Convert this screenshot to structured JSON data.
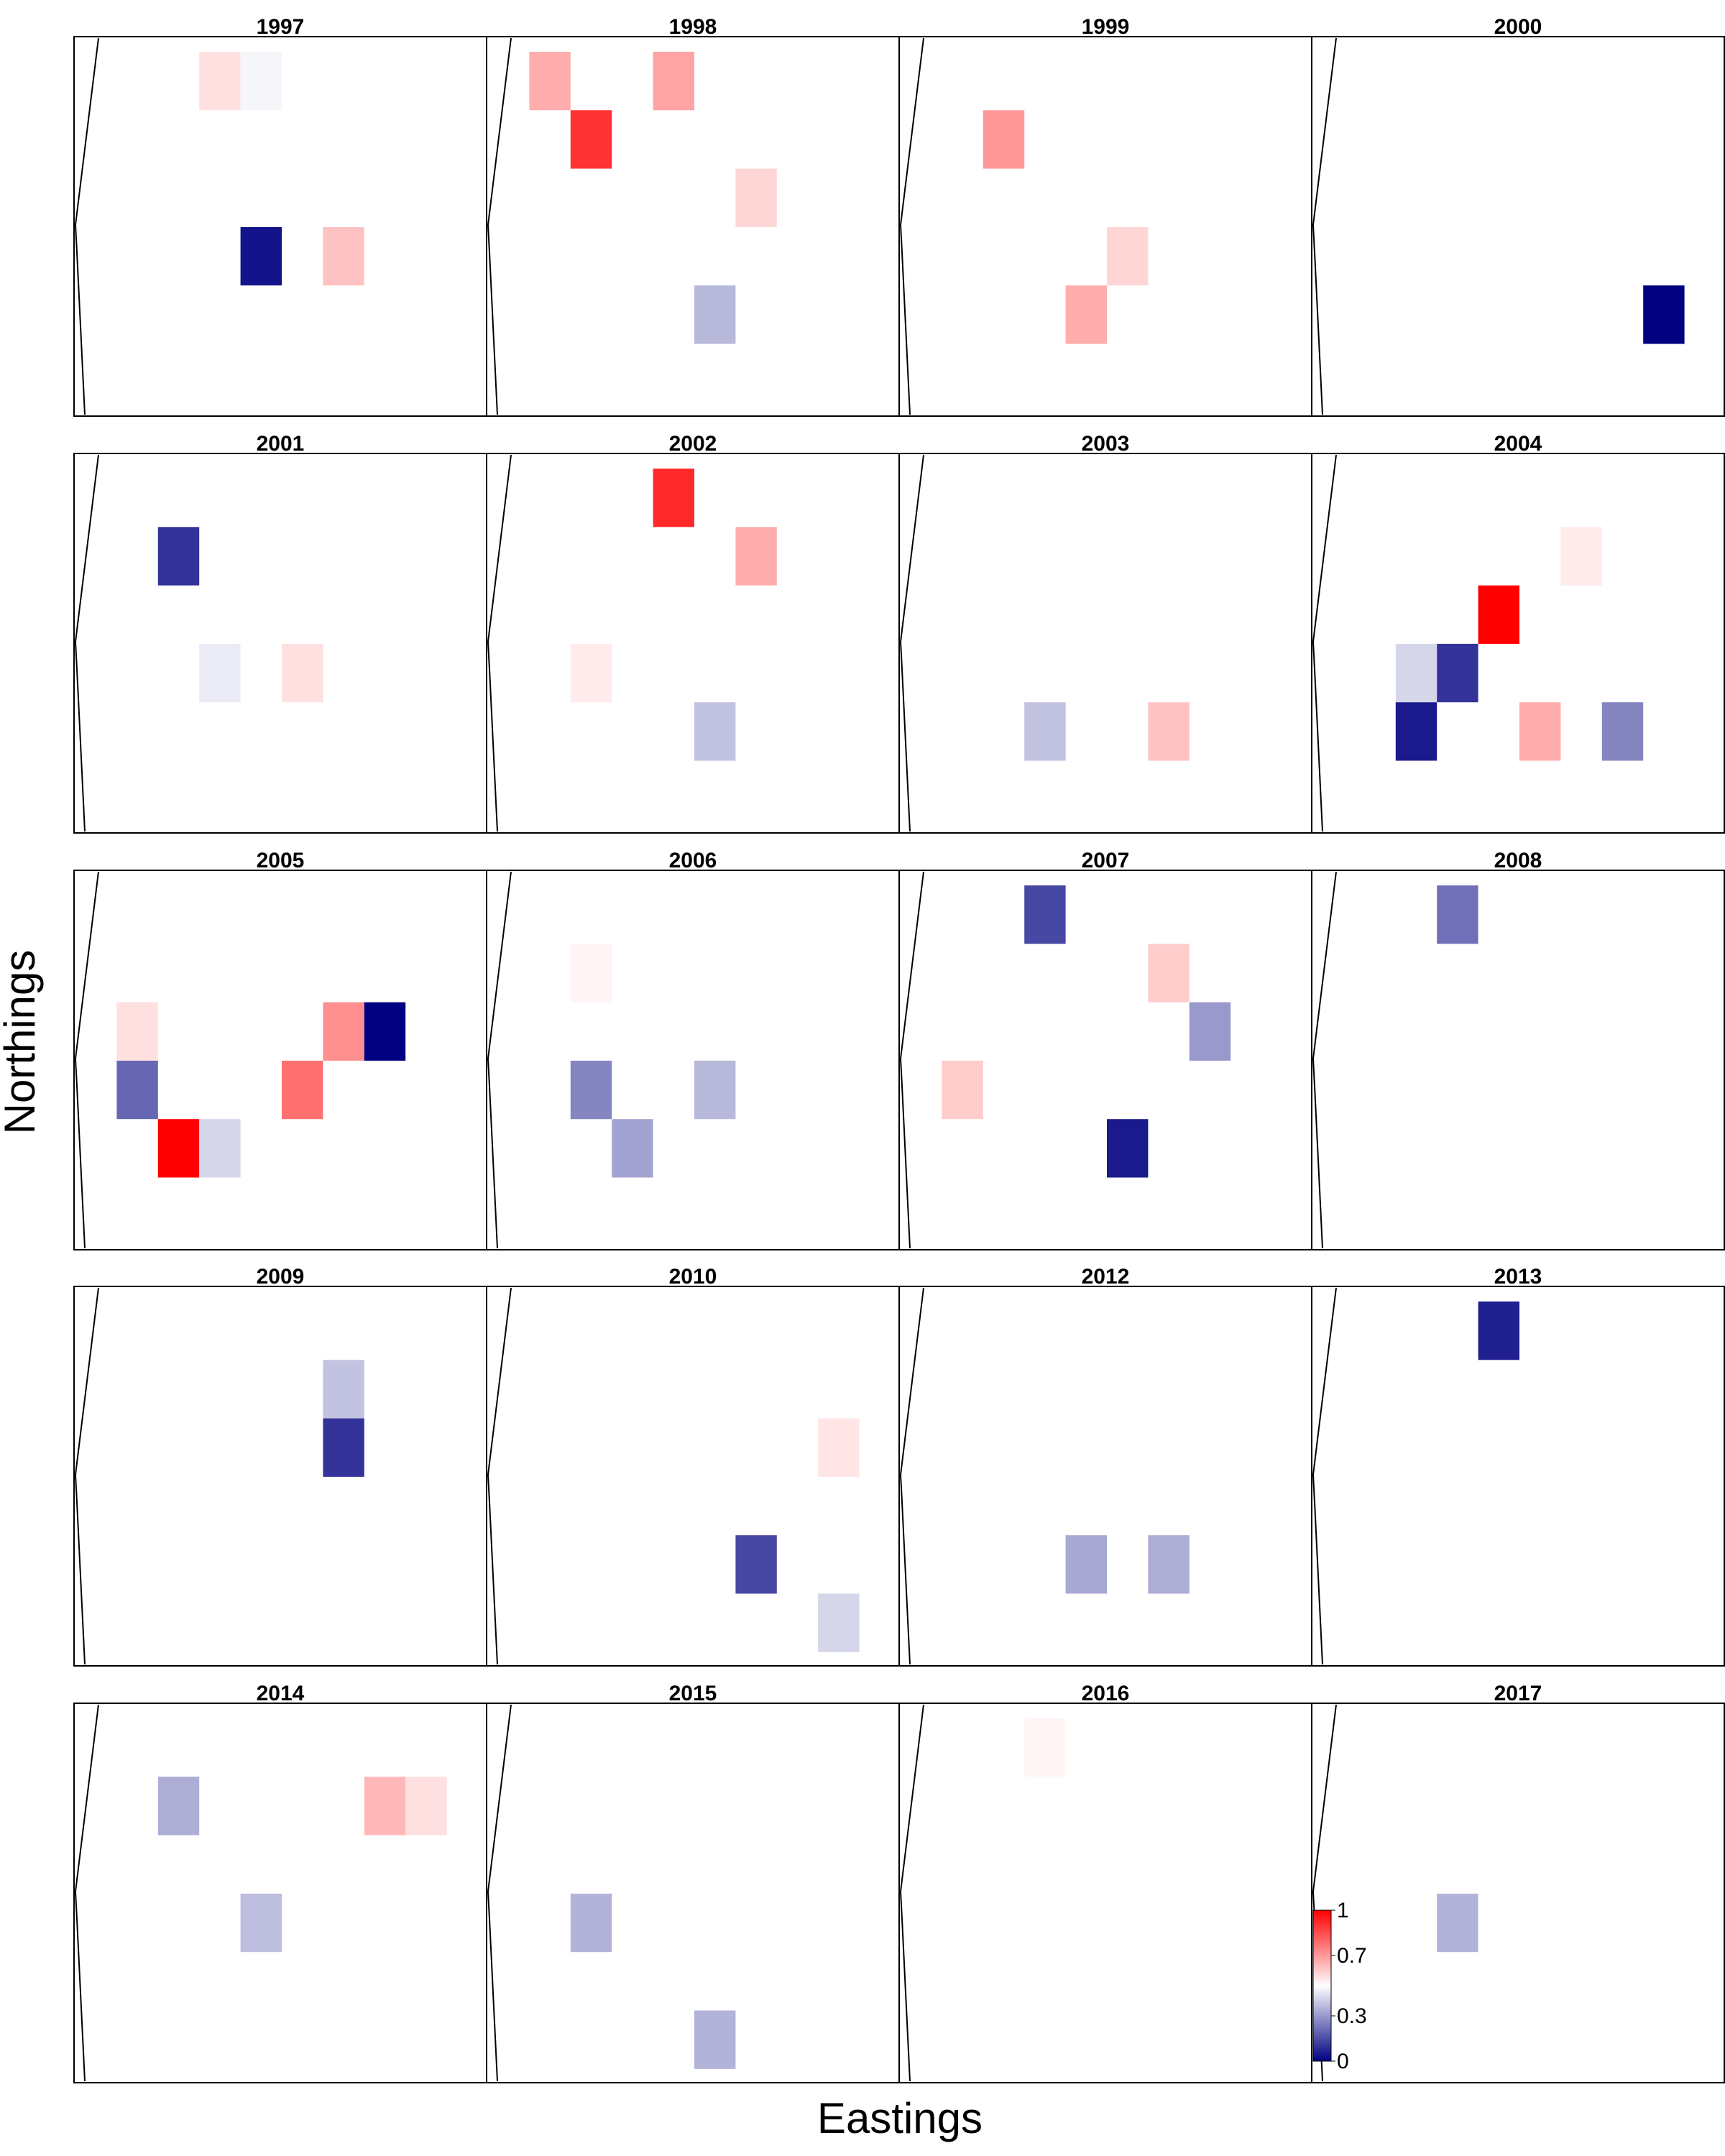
{
  "chart_data": {
    "type": "heatmap",
    "xlabel": "Eastings",
    "ylabel": "Northings",
    "colorbar": {
      "min": 0,
      "max": 1,
      "ticks": [
        "1",
        "0.7",
        "0.3",
        "0"
      ],
      "colors": [
        "#000080",
        "#ffffff",
        "#ff0000"
      ]
    },
    "grid": {
      "columns": 10,
      "rows": 6
    },
    "panels": [
      {
        "year": "1997",
        "cells": [
          {
            "col": 3,
            "row": 0,
            "v": 0.56
          },
          {
            "col": 4,
            "row": 0,
            "v": 0.48
          },
          {
            "col": 4,
            "row": 3,
            "v": 0.04
          },
          {
            "col": 6,
            "row": 3,
            "v": 0.62
          }
        ]
      },
      {
        "year": "1998",
        "cells": [
          {
            "col": 1,
            "row": 0,
            "v": 0.66
          },
          {
            "col": 4,
            "row": 0,
            "v": 0.68
          },
          {
            "col": 2,
            "row": 1,
            "v": 0.9
          },
          {
            "col": 6,
            "row": 2,
            "v": 0.58
          },
          {
            "col": 5,
            "row": 4,
            "v": 0.36
          }
        ]
      },
      {
        "year": "1999",
        "cells": [
          {
            "col": 2,
            "row": 1,
            "v": 0.7
          },
          {
            "col": 5,
            "row": 3,
            "v": 0.58
          },
          {
            "col": 4,
            "row": 4,
            "v": 0.66
          }
        ]
      },
      {
        "year": "2000",
        "cells": [
          {
            "col": 8,
            "row": 4,
            "v": 0.0
          }
        ]
      },
      {
        "year": "2001",
        "cells": [
          {
            "col": 2,
            "row": 1,
            "v": 0.1
          },
          {
            "col": 3,
            "row": 3,
            "v": 0.46
          },
          {
            "col": 5,
            "row": 3,
            "v": 0.56
          }
        ]
      },
      {
        "year": "2002",
        "cells": [
          {
            "col": 4,
            "row": 0,
            "v": 0.92
          },
          {
            "col": 6,
            "row": 1,
            "v": 0.66
          },
          {
            "col": 2,
            "row": 3,
            "v": 0.54
          },
          {
            "col": 5,
            "row": 4,
            "v": 0.38
          }
        ]
      },
      {
        "year": "2003",
        "cells": [
          {
            "col": 3,
            "row": 4,
            "v": 0.38
          },
          {
            "col": 6,
            "row": 4,
            "v": 0.62
          }
        ]
      },
      {
        "year": "2004",
        "cells": [
          {
            "col": 6,
            "row": 1,
            "v": 0.54
          },
          {
            "col": 4,
            "row": 2,
            "v": 1.0
          },
          {
            "col": 2,
            "row": 3,
            "v": 0.42
          },
          {
            "col": 3,
            "row": 3,
            "v": 0.1
          },
          {
            "col": 2,
            "row": 4,
            "v": 0.05
          },
          {
            "col": 5,
            "row": 4,
            "v": 0.66
          },
          {
            "col": 7,
            "row": 4,
            "v": 0.26
          }
        ]
      },
      {
        "year": "2005",
        "cells": [
          {
            "col": 1,
            "row": 2,
            "v": 0.56
          },
          {
            "col": 6,
            "row": 2,
            "v": 0.72
          },
          {
            "col": 7,
            "row": 2,
            "v": 0.0
          },
          {
            "col": 1,
            "row": 3,
            "v": 0.2
          },
          {
            "col": 5,
            "row": 3,
            "v": 0.78
          },
          {
            "col": 2,
            "row": 4,
            "v": 1.0
          },
          {
            "col": 3,
            "row": 4,
            "v": 0.42
          }
        ]
      },
      {
        "year": "2006",
        "cells": [
          {
            "col": 2,
            "row": 1,
            "v": 0.52
          },
          {
            "col": 2,
            "row": 3,
            "v": 0.26
          },
          {
            "col": 5,
            "row": 3,
            "v": 0.36
          },
          {
            "col": 3,
            "row": 4,
            "v": 0.32
          }
        ]
      },
      {
        "year": "2007",
        "cells": [
          {
            "col": 3,
            "row": 0,
            "v": 0.14
          },
          {
            "col": 6,
            "row": 1,
            "v": 0.6
          },
          {
            "col": 7,
            "row": 2,
            "v": 0.3
          },
          {
            "col": 1,
            "row": 3,
            "v": 0.6
          },
          {
            "col": 5,
            "row": 4,
            "v": 0.05
          }
        ]
      },
      {
        "year": "2008",
        "cells": [
          {
            "col": 3,
            "row": 0,
            "v": 0.22
          }
        ]
      },
      {
        "year": "2009",
        "cells": [
          {
            "col": 6,
            "row": 1,
            "v": 0.38
          },
          {
            "col": 6,
            "row": 2,
            "v": 0.1
          }
        ]
      },
      {
        "year": "2010",
        "cells": [
          {
            "col": 8,
            "row": 2,
            "v": 0.55
          },
          {
            "col": 6,
            "row": 4,
            "v": 0.14
          },
          {
            "col": 8,
            "row": 5,
            "v": 0.42
          }
        ]
      },
      {
        "year": "2012",
        "cells": [
          {
            "col": 4,
            "row": 4,
            "v": 0.33
          },
          {
            "col": 6,
            "row": 4,
            "v": 0.34
          }
        ]
      },
      {
        "year": "2013",
        "cells": [
          {
            "col": 4,
            "row": 0,
            "v": 0.06
          }
        ]
      },
      {
        "year": "2014",
        "cells": [
          {
            "col": 2,
            "row": 1,
            "v": 0.34
          },
          {
            "col": 7,
            "row": 1,
            "v": 0.64
          },
          {
            "col": 8,
            "row": 1,
            "v": 0.56
          },
          {
            "col": 4,
            "row": 3,
            "v": 0.37
          }
        ]
      },
      {
        "year": "2015",
        "cells": [
          {
            "col": 2,
            "row": 3,
            "v": 0.35
          },
          {
            "col": 5,
            "row": 5,
            "v": 0.35
          }
        ]
      },
      {
        "year": "2016",
        "cells": [
          {
            "col": 3,
            "row": 0,
            "v": 0.52
          }
        ]
      },
      {
        "year": "2017",
        "cells": [
          {
            "col": 3,
            "row": 3,
            "v": 0.35
          }
        ]
      }
    ]
  }
}
